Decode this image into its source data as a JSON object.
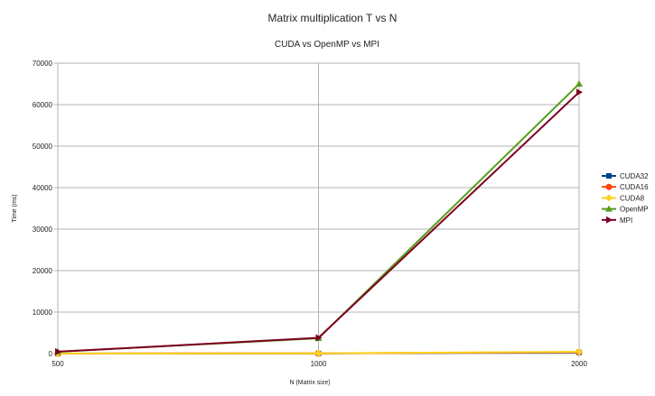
{
  "chart_data": {
    "type": "line",
    "title": "Matrix multiplication T vs N",
    "subtitle": "CUDA vs OpenMP vs MPI",
    "xlabel": "N (Matrix size)",
    "ylabel": "Time (ms)",
    "categories": [
      "500",
      "1000",
      "2000"
    ],
    "ylim": [
      0,
      70000
    ],
    "yticks": [
      0,
      10000,
      20000,
      30000,
      40000,
      50000,
      60000,
      70000
    ],
    "grid": true,
    "legend_position": "right",
    "series": [
      {
        "name": "CUDA32",
        "values": [
          10,
          50,
          300
        ],
        "color": "#004586",
        "marker": "square"
      },
      {
        "name": "CUDA16",
        "values": [
          10,
          60,
          350
        ],
        "color": "#ff420e",
        "marker": "circle"
      },
      {
        "name": "CUDA8",
        "values": [
          15,
          80,
          450
        ],
        "color": "#ffd320",
        "marker": "diamond"
      },
      {
        "name": "OpenMP",
        "values": [
          450,
          3700,
          65000
        ],
        "color": "#579d1c",
        "marker": "triangle-up"
      },
      {
        "name": "MPI",
        "values": [
          450,
          3800,
          63000
        ],
        "color": "#7e0021",
        "marker": "triangle-right"
      }
    ]
  }
}
